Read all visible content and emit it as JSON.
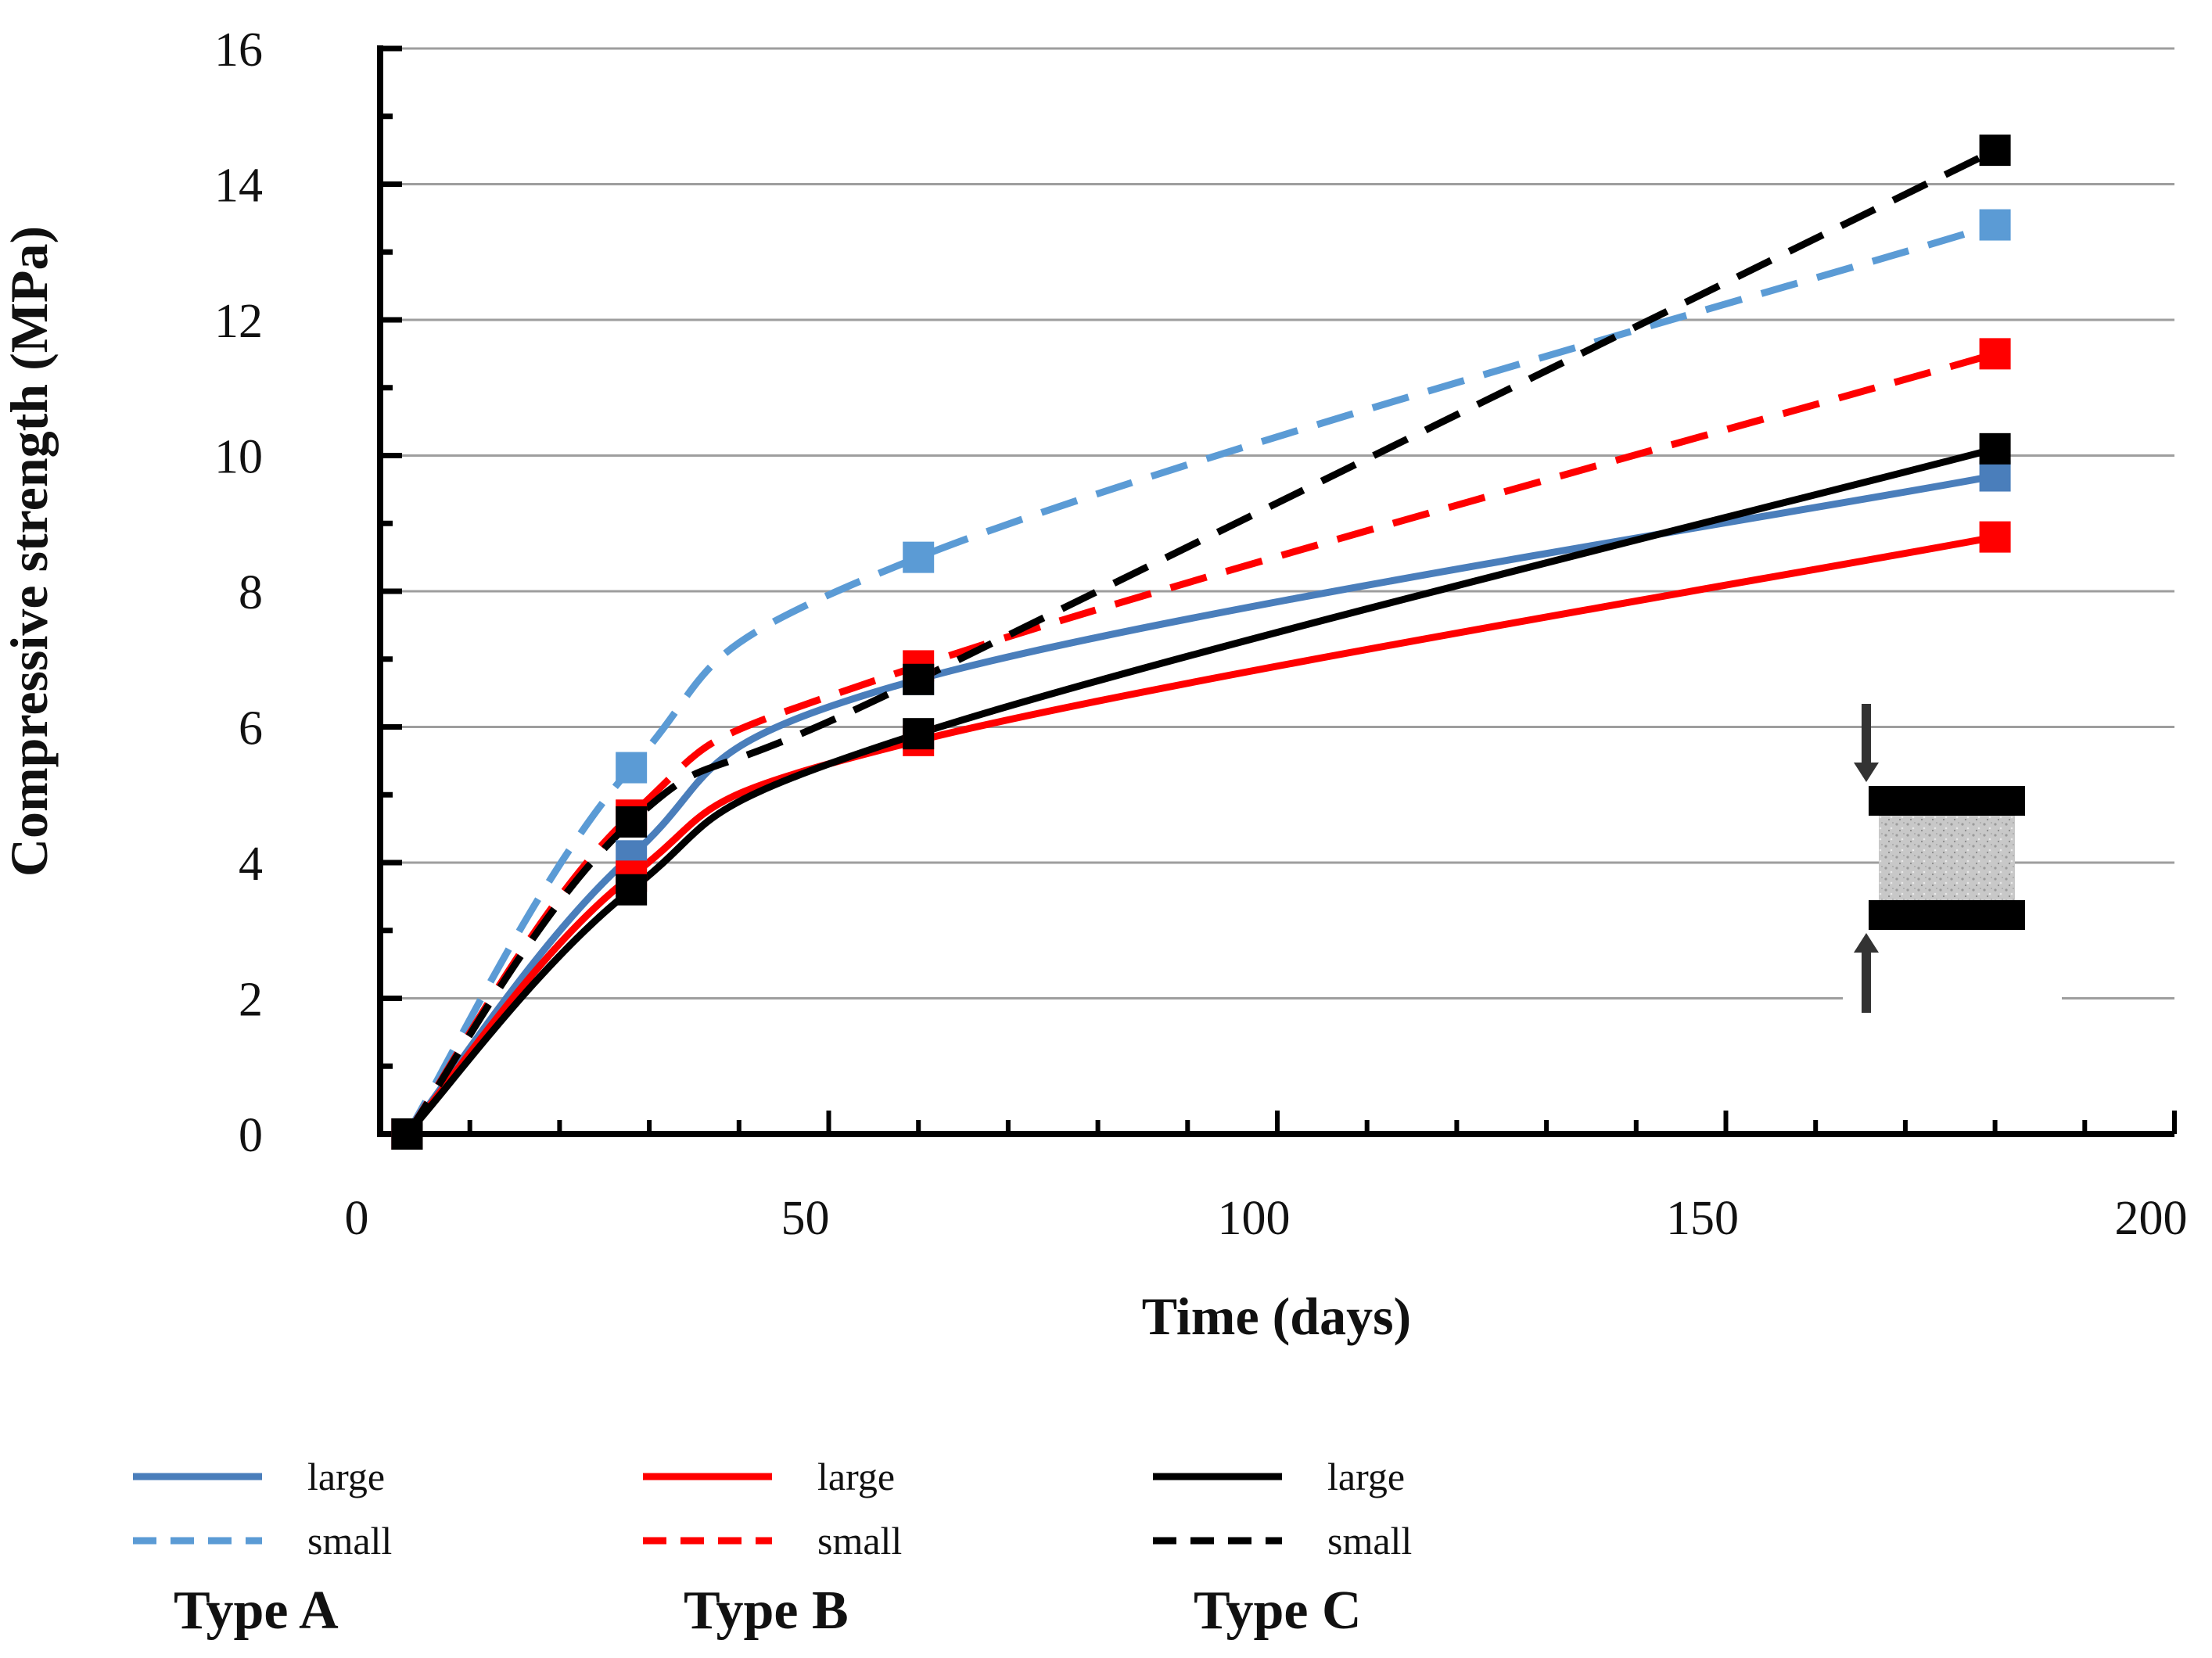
{
  "chart_data": {
    "type": "line",
    "xlabel": "Time (days)",
    "ylabel": "Compressive strength (MPa)",
    "xlim": [
      0,
      200
    ],
    "ylim": [
      0,
      16
    ],
    "xticks": [
      0,
      50,
      100,
      150,
      200
    ],
    "yticks": [
      0,
      2,
      4,
      6,
      8,
      10,
      12,
      14,
      16
    ],
    "grid": "horizontal",
    "legend_position": "bottom",
    "series": [
      {
        "name": "Type A large",
        "group": "Type A",
        "size": "large",
        "dash": "solid",
        "color": "#4a7ebb",
        "marker_color": "#4a7ebb",
        "x": [
          3,
          28,
          60,
          180
        ],
        "y": [
          0,
          4.1,
          6.7,
          9.7
        ]
      },
      {
        "name": "Type A small",
        "group": "Type A",
        "size": "small",
        "dash": "dashed",
        "color": "#5b9bd5",
        "marker_color": "#5b9bd5",
        "x": [
          3,
          28,
          60,
          180
        ],
        "y": [
          0,
          5.4,
          8.5,
          13.4
        ]
      },
      {
        "name": "Type B large",
        "group": "Type B",
        "size": "large",
        "dash": "solid",
        "color": "#ff0000",
        "marker_color": "#ff0000",
        "x": [
          3,
          28,
          60,
          180
        ],
        "y": [
          0,
          3.8,
          5.8,
          8.8
        ]
      },
      {
        "name": "Type B small",
        "group": "Type B",
        "size": "small",
        "dash": "dashed",
        "color": "#ff0000",
        "marker_color": "#ff0000",
        "x": [
          3,
          28,
          60,
          180
        ],
        "y": [
          0,
          4.7,
          6.9,
          11.5
        ]
      },
      {
        "name": "Type C large",
        "group": "Type C",
        "size": "large",
        "dash": "solid",
        "color": "#000000",
        "marker_color": "#000000",
        "x": [
          3,
          28,
          60,
          180
        ],
        "y": [
          0,
          3.6,
          5.9,
          10.1
        ]
      },
      {
        "name": "Type C small",
        "group": "Type C",
        "size": "small",
        "dash": "dashed",
        "color": "#000000",
        "marker_color": "#000000",
        "x": [
          3,
          28,
          60,
          180
        ],
        "y": [
          0,
          4.6,
          6.7,
          14.5
        ]
      }
    ],
    "legend": {
      "groups": [
        {
          "title": "Type A",
          "large_label": "large",
          "small_label": "small",
          "large_color": "#4a7ebb",
          "small_color": "#5b9bd5"
        },
        {
          "title": "Type B",
          "large_label": "large",
          "small_label": "small",
          "large_color": "#ff0000",
          "small_color": "#ff0000"
        },
        {
          "title": "Type C",
          "large_label": "large",
          "small_label": "small",
          "large_color": "#000000",
          "small_color": "#000000"
        }
      ]
    },
    "inset_icon": "compression-specimen-icon"
  }
}
